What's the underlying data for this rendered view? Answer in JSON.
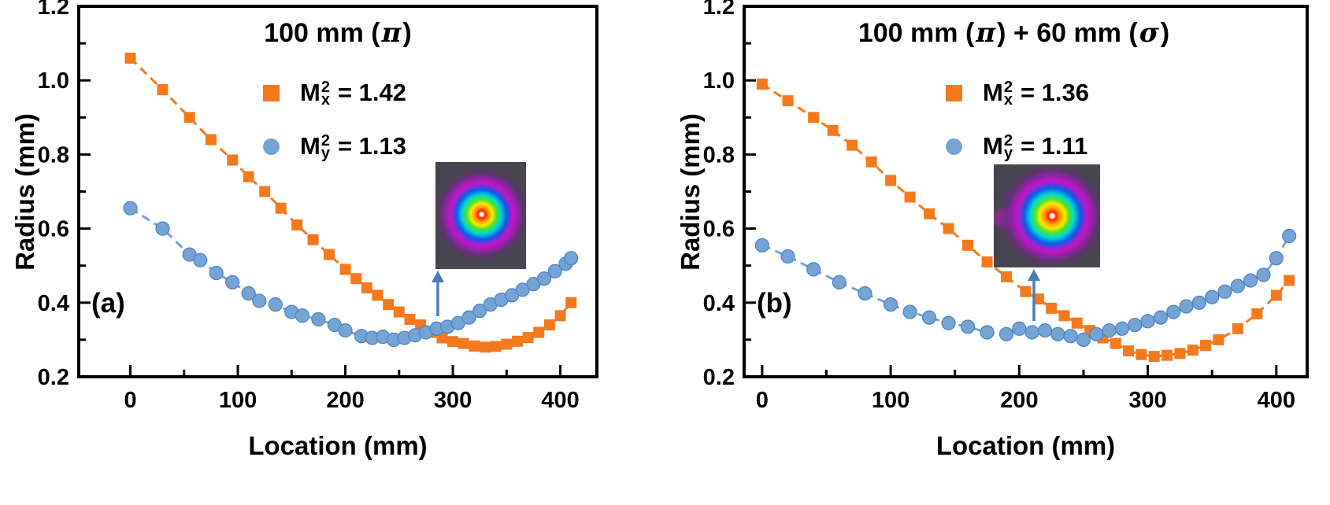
{
  "colors": {
    "orange": "#F5791D",
    "blue": "#74A3D4",
    "blue_stroke": "#4F81BD",
    "axis": "#000000",
    "arrow": "#4A7EB5",
    "text": "#000000"
  },
  "chart_data": [
    {
      "type": "scatter",
      "panel_label": "(a)",
      "title_parts": [
        {
          "t": "100 mm ("
        },
        {
          "t": "π",
          "italic": true
        },
        {
          "t": ")"
        }
      ],
      "xlabel": "Location (mm)",
      "ylabel": "Radius (mm)",
      "xlim": [
        -48,
        434
      ],
      "ylim": [
        0.2,
        1.2
      ],
      "xticks": {
        "values": [
          0,
          100,
          200,
          300,
          400
        ],
        "labels": [
          "0",
          "100",
          "200",
          "300",
          "400"
        ],
        "minor": [
          50,
          150,
          250,
          350
        ]
      },
      "yticks": {
        "values": [
          0.2,
          0.4,
          0.6,
          0.8,
          1.0,
          1.2
        ],
        "labels": [
          "0.2",
          "0.4",
          "0.6",
          "0.8",
          "1.0",
          "1.2"
        ],
        "minor": [
          0.3,
          0.5,
          0.7,
          0.9,
          1.1
        ]
      },
      "series": [
        {
          "marker": "square",
          "color_key": "orange",
          "legend": {
            "base": "M",
            "sup": "2",
            "sub": "x",
            "eq": "= 1.42"
          },
          "x": [
            0,
            30,
            55,
            75,
            95,
            110,
            125,
            140,
            155,
            170,
            185,
            200,
            210,
            220,
            230,
            240,
            250,
            260,
            270,
            280,
            290,
            300,
            310,
            320,
            330,
            340,
            350,
            360,
            370,
            380,
            390,
            400,
            410
          ],
          "y": [
            1.06,
            0.975,
            0.9,
            0.84,
            0.785,
            0.74,
            0.7,
            0.655,
            0.61,
            0.57,
            0.53,
            0.49,
            0.465,
            0.44,
            0.42,
            0.395,
            0.375,
            0.355,
            0.34,
            0.32,
            0.305,
            0.295,
            0.29,
            0.283,
            0.28,
            0.282,
            0.288,
            0.296,
            0.306,
            0.32,
            0.34,
            0.365,
            0.4
          ]
        },
        {
          "marker": "circle",
          "color_key": "blue",
          "legend": {
            "base": "M",
            "sup": "2",
            "sub": "y",
            "eq": "= 1.13"
          },
          "x": [
            0,
            30,
            55,
            65,
            80,
            95,
            110,
            120,
            135,
            150,
            160,
            175,
            190,
            200,
            215,
            225,
            235,
            245,
            255,
            265,
            275,
            285,
            295,
            305,
            315,
            325,
            335,
            345,
            355,
            365,
            375,
            385,
            395,
            405,
            410
          ],
          "y": [
            0.655,
            0.6,
            0.53,
            0.515,
            0.48,
            0.455,
            0.425,
            0.405,
            0.395,
            0.375,
            0.365,
            0.355,
            0.34,
            0.325,
            0.31,
            0.305,
            0.308,
            0.3,
            0.305,
            0.312,
            0.32,
            0.33,
            0.335,
            0.345,
            0.36,
            0.378,
            0.395,
            0.408,
            0.42,
            0.435,
            0.45,
            0.465,
            0.485,
            0.505,
            0.52
          ]
        }
      ]
    },
    {
      "type": "scatter",
      "panel_label": "(b)",
      "title_parts": [
        {
          "t": "100 mm ("
        },
        {
          "t": "π",
          "italic": true
        },
        {
          "t": ") + 60 mm ("
        },
        {
          "t": "σ",
          "italic": true
        },
        {
          "t": ")"
        }
      ],
      "xlabel": "Location (mm)",
      "ylabel": "Radius (mm)",
      "xlim": [
        -14,
        424
      ],
      "ylim": [
        0.2,
        1.2
      ],
      "xticks": {
        "values": [
          0,
          100,
          200,
          300,
          400
        ],
        "labels": [
          "0",
          "100",
          "200",
          "300",
          "400"
        ],
        "minor": [
          50,
          150,
          250,
          350
        ]
      },
      "yticks": {
        "values": [
          0.2,
          0.4,
          0.6,
          0.8,
          1.0,
          1.2
        ],
        "labels": [
          "0.2",
          "0.4",
          "0.6",
          "0.8",
          "1.0",
          "1.2"
        ],
        "minor": [
          0.3,
          0.5,
          0.7,
          0.9,
          1.1
        ]
      },
      "series": [
        {
          "marker": "square",
          "color_key": "orange",
          "legend": {
            "base": "M",
            "sup": "2",
            "sub": "x",
            "eq": "= 1.36"
          },
          "x": [
            0,
            20,
            40,
            55,
            70,
            85,
            100,
            115,
            130,
            145,
            160,
            175,
            190,
            205,
            215,
            225,
            235,
            245,
            255,
            265,
            275,
            285,
            295,
            305,
            315,
            325,
            335,
            345,
            355,
            370,
            385,
            400,
            410
          ],
          "y": [
            0.99,
            0.945,
            0.9,
            0.865,
            0.825,
            0.78,
            0.73,
            0.685,
            0.64,
            0.6,
            0.555,
            0.51,
            0.47,
            0.43,
            0.41,
            0.385,
            0.365,
            0.345,
            0.325,
            0.305,
            0.29,
            0.27,
            0.26,
            0.255,
            0.258,
            0.263,
            0.272,
            0.285,
            0.3,
            0.33,
            0.37,
            0.42,
            0.46
          ]
        },
        {
          "marker": "circle",
          "color_key": "blue",
          "legend": {
            "base": "M",
            "sup": "2",
            "sub": "y",
            "eq": "= 1.11"
          },
          "x": [
            0,
            20,
            40,
            60,
            80,
            100,
            115,
            130,
            145,
            160,
            175,
            190,
            200,
            210,
            220,
            230,
            240,
            250,
            260,
            270,
            280,
            290,
            300,
            310,
            320,
            330,
            340,
            350,
            360,
            370,
            380,
            390,
            400,
            410
          ],
          "y": [
            0.555,
            0.525,
            0.49,
            0.455,
            0.425,
            0.395,
            0.375,
            0.36,
            0.345,
            0.335,
            0.32,
            0.315,
            0.33,
            0.32,
            0.325,
            0.315,
            0.31,
            0.3,
            0.315,
            0.325,
            0.33,
            0.34,
            0.35,
            0.36,
            0.375,
            0.39,
            0.4,
            0.415,
            0.43,
            0.445,
            0.46,
            0.475,
            0.52,
            0.58
          ]
        }
      ]
    }
  ]
}
